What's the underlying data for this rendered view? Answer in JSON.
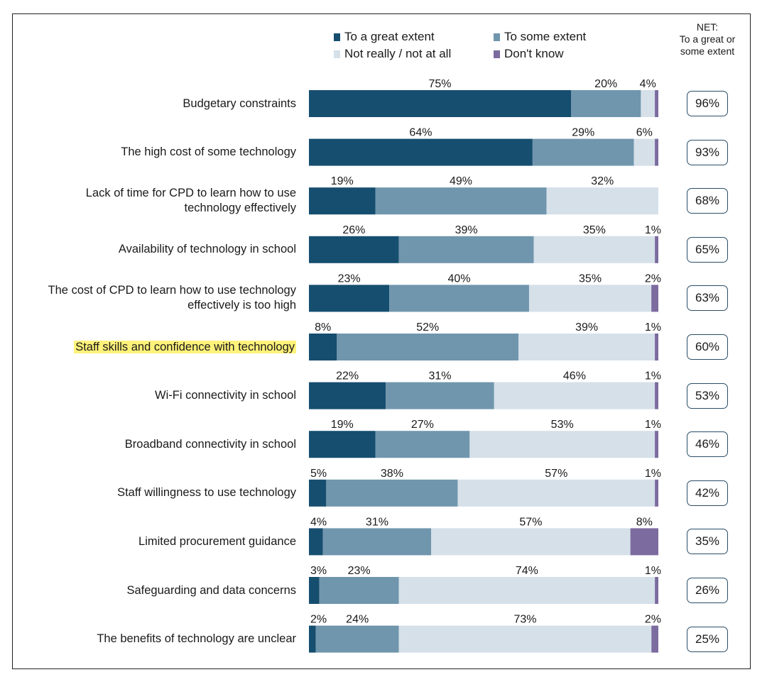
{
  "chart_data": {
    "type": "bar",
    "orientation": "horizontal",
    "stacked": true,
    "series": [
      {
        "name": "To a great extent",
        "color": "#164e6f"
      },
      {
        "name": "To some extent",
        "color": "#7096ad"
      },
      {
        "name": "Not really / not at all",
        "color": "#d5e0e9"
      },
      {
        "name": "Don't know",
        "color": "#7b6b9f"
      }
    ],
    "net_header": [
      "NET:",
      "To a great or",
      "some extent"
    ],
    "rows": [
      {
        "label": "Budgetary constraints",
        "values": [
          75,
          20,
          4,
          1
        ],
        "labels": [
          "75%",
          "20%",
          "4%",
          ""
        ],
        "net": "96%"
      },
      {
        "label": "The high cost of some technology",
        "values": [
          64,
          29,
          6,
          1
        ],
        "labels": [
          "64%",
          "29%",
          "6%",
          ""
        ],
        "net": "93%"
      },
      {
        "label": "Lack of time for CPD to learn how to use technology effectively",
        "label_lines": [
          "Lack of time for CPD to learn how to use",
          "technology effectively"
        ],
        "values": [
          19,
          49,
          32,
          0
        ],
        "labels": [
          "19%",
          "49%",
          "32%",
          ""
        ],
        "net": "68%"
      },
      {
        "label": "Availability of technology in school",
        "values": [
          26,
          39,
          35,
          1
        ],
        "labels": [
          "26%",
          "39%",
          "35%",
          "1%"
        ],
        "net": "65%"
      },
      {
        "label": "The cost of CPD to learn how to use technology effectively is too high",
        "label_lines": [
          "The cost of CPD to learn how to use technology",
          "effectively is too high"
        ],
        "values": [
          23,
          40,
          35,
          2
        ],
        "labels": [
          "23%",
          "40%",
          "35%",
          "2%"
        ],
        "net": "63%"
      },
      {
        "label": "Staff skills and confidence with technology",
        "highlight": true,
        "values": [
          8,
          52,
          39,
          1
        ],
        "labels": [
          "8%",
          "52%",
          "39%",
          "1%"
        ],
        "net": "60%"
      },
      {
        "label": "Wi-Fi connectivity in school",
        "values": [
          22,
          31,
          46,
          1
        ],
        "labels": [
          "22%",
          "31%",
          "46%",
          "1%"
        ],
        "net": "53%"
      },
      {
        "label": "Broadband connectivity in school",
        "values": [
          19,
          27,
          53,
          1
        ],
        "labels": [
          "19%",
          "27%",
          "53%",
          "1%"
        ],
        "net": "46%"
      },
      {
        "label": "Staff willingness to use technology",
        "values": [
          5,
          38,
          57,
          1
        ],
        "labels": [
          "5%",
          "38%",
          "57%",
          "1%"
        ],
        "net": "42%"
      },
      {
        "label": "Limited procurement guidance",
        "values": [
          4,
          31,
          57,
          8
        ],
        "labels": [
          "4%",
          "31%",
          "57%",
          "8%"
        ],
        "net": "35%"
      },
      {
        "label": "Safeguarding and data concerns",
        "values": [
          3,
          23,
          74,
          1
        ],
        "labels": [
          "3%",
          "23%",
          "74%",
          "1%"
        ],
        "net": "26%"
      },
      {
        "label": "The benefits of technology are unclear",
        "values": [
          2,
          24,
          73,
          2
        ],
        "labels": [
          "2%",
          "24%",
          "73%",
          "2%"
        ],
        "net": "25%"
      }
    ]
  }
}
